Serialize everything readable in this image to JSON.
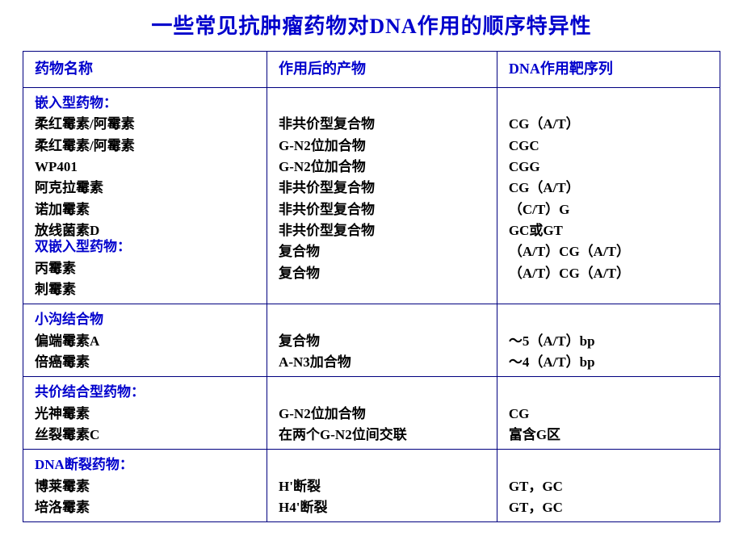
{
  "title": "一些常见抗肿瘤药物对DNA作用的顺序特异性",
  "columns": [
    "药物名称",
    "作用后的产物",
    "DNA作用靶序列"
  ],
  "colors": {
    "heading": "#0000cc",
    "border": "#000080",
    "text": "#000000",
    "background": "#ffffff"
  },
  "fontsize": {
    "title": 26,
    "header": 18,
    "body": 17
  },
  "sections": [
    {
      "groups": [
        {
          "label": "嵌入型药物：",
          "rows": [
            {
              "name": "柔红霉素/阿霉素",
              "product": "非共价型复合物",
              "target": "CG（A/T）"
            },
            {
              "name": "柔红霉素/阿霉素",
              "product": "G-N2位加合物",
              "target": "CGC"
            },
            {
              "name": "WP401",
              "product": "G-N2位加合物",
              "target": "CGG"
            },
            {
              "name": "阿克拉霉素",
              "product": "非共价型复合物",
              "target": "CG（A/T）"
            },
            {
              "name": "诺加霉素",
              "product": "非共价型复合物",
              "target": "（C/T）G"
            },
            {
              "name": "放线菌素D",
              "product": "非共价型复合物",
              "target": "GC或GT"
            }
          ]
        },
        {
          "label": "双嵌入型药物：",
          "overlap": true,
          "rows": [
            {
              "name": "丙霉素",
              "product": "复合物",
              "target": "（A/T）CG（A/T）"
            },
            {
              "name": "刺霉素",
              "product": "复合物",
              "target": "（A/T）CG（A/T）"
            }
          ]
        }
      ]
    },
    {
      "groups": [
        {
          "label": "小沟结合物",
          "rows": [
            {
              "name": "偏端霉素A",
              "product": "复合物",
              "target": "～5（A/T）bp"
            },
            {
              "name": "倍癌霉素",
              "product": "A-N3加合物",
              "target": "～4（A/T）bp"
            }
          ]
        }
      ]
    },
    {
      "groups": [
        {
          "label": "共价结合型药物：",
          "rows": [
            {
              "name": "光神霉素",
              "product": "G-N2位加合物",
              "target": "CG"
            },
            {
              "name": "丝裂霉素C",
              "product": "在两个G-N2位间交联",
              "target": "富含G区"
            }
          ]
        }
      ]
    },
    {
      "groups": [
        {
          "label": "DNA断裂药物：",
          "rows": [
            {
              "name": "博莱霉素",
              "product": "H'断裂",
              "target": "GT，GC"
            },
            {
              "name": "培洛霉素",
              "product": "H4'断裂",
              "target": "GT，GC"
            }
          ]
        }
      ]
    }
  ]
}
